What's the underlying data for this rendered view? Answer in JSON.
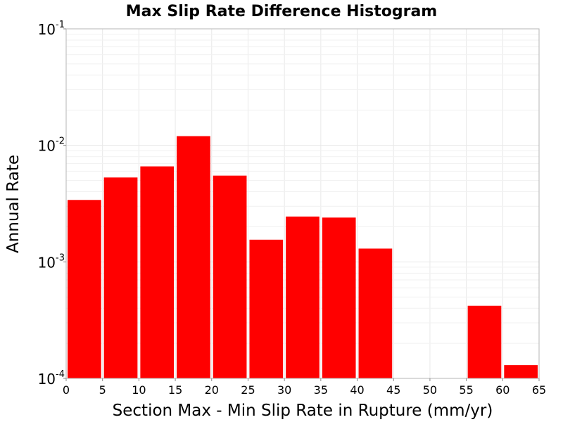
{
  "chart_data": {
    "type": "bar",
    "title": "Max Slip Rate Difference Histogram",
    "xlabel": "Section Max - Min Slip Rate in Rupture (mm/yr)",
    "ylabel": "Annual Rate",
    "yscale": "log",
    "ylim": [
      0.0001,
      0.1
    ],
    "xlim": [
      0,
      65
    ],
    "bin_width": 5,
    "bins": [
      {
        "start": 0,
        "end": 5,
        "value": 0.0034
      },
      {
        "start": 5,
        "end": 10,
        "value": 0.0053
      },
      {
        "start": 10,
        "end": 15,
        "value": 0.0066
      },
      {
        "start": 15,
        "end": 20,
        "value": 0.012
      },
      {
        "start": 20,
        "end": 25,
        "value": 0.0055
      },
      {
        "start": 25,
        "end": 30,
        "value": 0.00155
      },
      {
        "start": 30,
        "end": 35,
        "value": 0.00245
      },
      {
        "start": 35,
        "end": 40,
        "value": 0.0024
      },
      {
        "start": 40,
        "end": 45,
        "value": 0.0013
      },
      {
        "start": 45,
        "end": 50,
        "value": null
      },
      {
        "start": 50,
        "end": 55,
        "value": null
      },
      {
        "start": 55,
        "end": 60,
        "value": 0.00042
      },
      {
        "start": 60,
        "end": 65,
        "value": 0.00013
      }
    ],
    "x_ticks": [
      "0",
      "5",
      "10",
      "15",
      "20",
      "25",
      "30",
      "35",
      "40",
      "45",
      "50",
      "55",
      "60",
      "65"
    ],
    "y_ticks": [
      {
        "base": "10",
        "exp": "-4",
        "value": 0.0001
      },
      {
        "base": "10",
        "exp": "-3",
        "value": 0.001
      },
      {
        "base": "10",
        "exp": "-2",
        "value": 0.01
      },
      {
        "base": "10",
        "exp": "-1",
        "value": 0.1
      }
    ],
    "grid": true,
    "legend": "none",
    "colors": {
      "bar": "#ff0000",
      "grid": "#e8e8e8",
      "minor_grid": "#f1f1f1",
      "frame": "#b5b5b5"
    }
  }
}
